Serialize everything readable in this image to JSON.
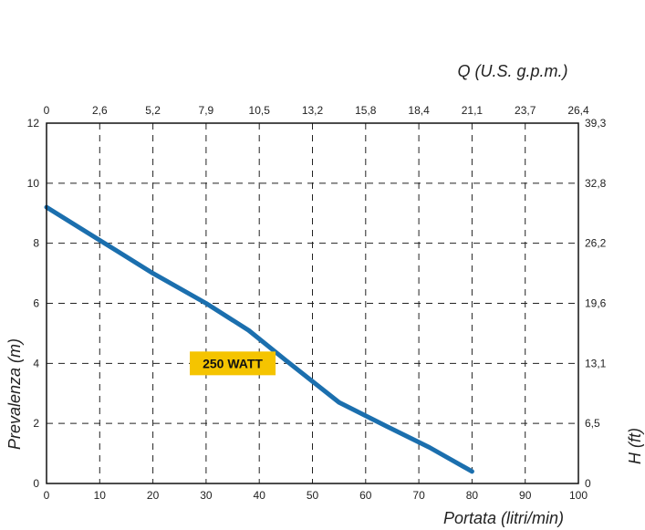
{
  "chart_data": {
    "type": "line",
    "title": "",
    "xlabel": "Portata (litri/min)",
    "ylabel": "Prevalenza (m)",
    "x2label": "Q (U.S. g.p.m.)",
    "y2label": "H (ft)",
    "xlim": [
      0,
      100
    ],
    "ylim": [
      0,
      12
    ],
    "x_ticks": [
      "0",
      "10",
      "20",
      "30",
      "40",
      "50",
      "60",
      "70",
      "80",
      "90",
      "100"
    ],
    "y_ticks": [
      "0",
      "2",
      "4",
      "6",
      "8",
      "10",
      "12"
    ],
    "x2_ticks": [
      "0",
      "2,6",
      "5,2",
      "7,9",
      "10,5",
      "13,2",
      "15,8",
      "18,4",
      "21,1",
      "23,7",
      "26,4"
    ],
    "y2_ticks": [
      "0",
      "6,5",
      "13,1",
      "19,6",
      "26,2",
      "32,8",
      "39,3"
    ],
    "grid": true,
    "series": [
      {
        "name": "250 WATT",
        "color": "#1b6fae",
        "label_bg": "#f5c400",
        "x": [
          0,
          10,
          20,
          30,
          38,
          45,
          55,
          64,
          72,
          80
        ],
        "y": [
          9.2,
          8.1,
          7.0,
          6.0,
          5.1,
          4.1,
          2.7,
          1.9,
          1.2,
          0.4
        ]
      }
    ]
  }
}
